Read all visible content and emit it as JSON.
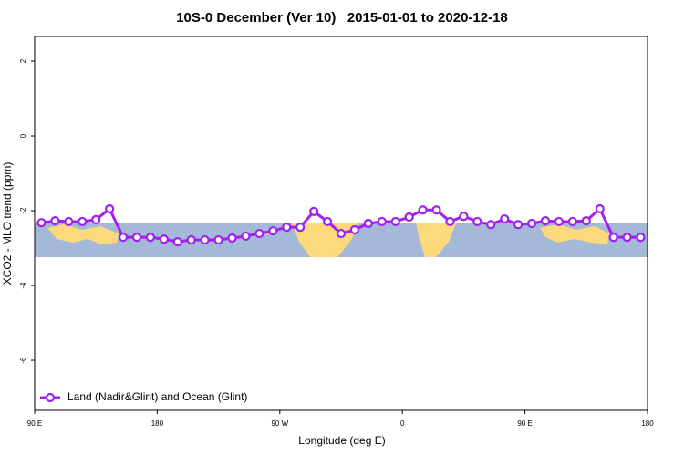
{
  "chart_data": {
    "type": "line",
    "title": "10S-0 December (Ver 10)   2015-01-01 to 2020-12-18",
    "x_label": "Longitude (deg E)",
    "y_label": "XCO2 - MLO trend (ppm)",
    "xlim": [
      90,
      540
    ],
    "xticks": [
      {
        "value": 90,
        "label": "90 E"
      },
      {
        "value": 180,
        "label": "180"
      },
      {
        "value": 270,
        "label": "90 W"
      },
      {
        "value": 360,
        "label": "0"
      },
      {
        "value": 450,
        "label": "90 E"
      },
      {
        "value": 540,
        "label": "180"
      }
    ],
    "ylim": [
      -7.34,
      2.66
    ],
    "yticks": [
      2,
      0,
      -2,
      -4,
      -6
    ],
    "legend": "bottom-left",
    "series": [
      {
        "name": "Land (Nadir&Glint) and Ocean (Glint)",
        "color": "#a020f0",
        "x": [
          95,
          105,
          115,
          125,
          135,
          145,
          155,
          165,
          175,
          185,
          195,
          205,
          215,
          225,
          235,
          245,
          255,
          265,
          275,
          285,
          295,
          305,
          315,
          325,
          335,
          345,
          355,
          365,
          375,
          385,
          395,
          405,
          415,
          425,
          435,
          445,
          455,
          465,
          475,
          485,
          495,
          505,
          515,
          525,
          535
        ],
        "values": [
          -2.32,
          -2.27,
          -2.29,
          -2.29,
          -2.24,
          -1.95,
          -2.71,
          -2.71,
          -2.71,
          -2.76,
          -2.83,
          -2.78,
          -2.78,
          -2.78,
          -2.73,
          -2.68,
          -2.61,
          -2.54,
          -2.44,
          -2.44,
          -2.02,
          -2.29,
          -2.61,
          -2.51,
          -2.34,
          -2.29,
          -2.29,
          -2.17,
          -1.98,
          -1.98,
          -2.29,
          -2.15,
          -2.29,
          -2.37,
          -2.22,
          -2.37,
          -2.34,
          -2.27,
          -2.29,
          -2.29,
          -2.27,
          -1.95,
          -2.71,
          -2.71,
          -2.71
        ]
      }
    ]
  }
}
